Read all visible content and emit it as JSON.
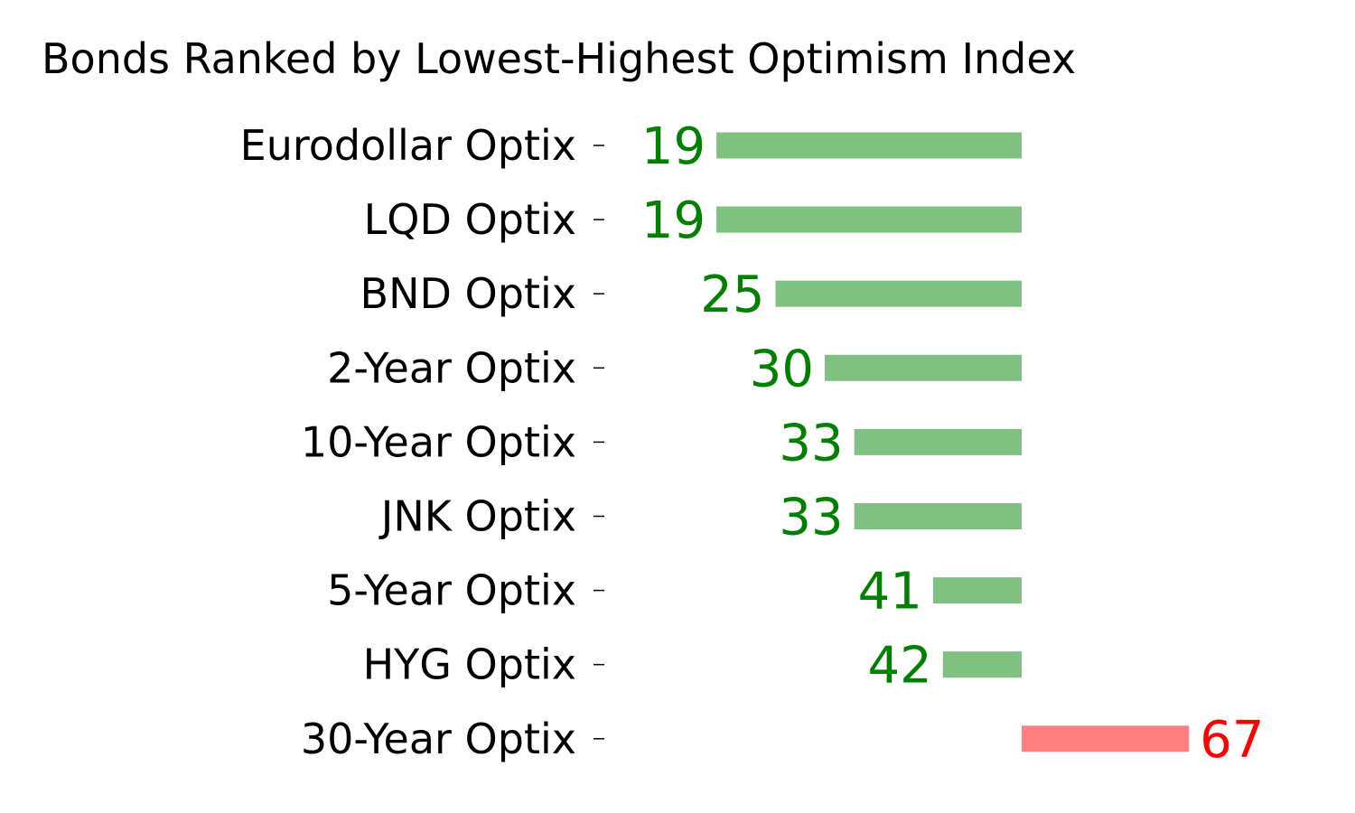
{
  "chart_data": {
    "type": "bar",
    "orientation": "horizontal",
    "title": "Bonds Ranked by Lowest-Highest Optimism Index",
    "categories": [
      "Eurodollar Optix",
      "LQD Optix",
      "BND Optix",
      "2-Year Optix",
      "10-Year Optix",
      "JNK Optix",
      "5-Year Optix",
      "HYG Optix",
      "30-Year Optix"
    ],
    "values": [
      19,
      19,
      25,
      30,
      33,
      33,
      41,
      42,
      67
    ],
    "baseline": 50,
    "xlim": [
      0,
      100
    ],
    "grid": false,
    "legend": "none",
    "colors": {
      "below_bar": "#80c080",
      "below_label": "#008000",
      "above_bar": "#ff8080",
      "above_label": "#ff0000"
    }
  }
}
